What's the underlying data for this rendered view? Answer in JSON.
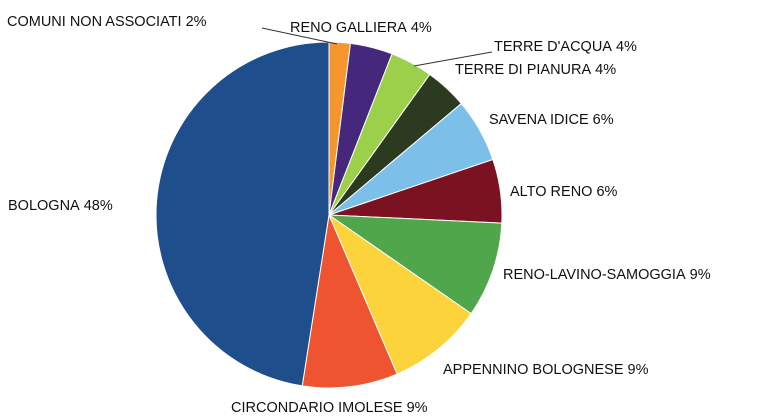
{
  "chart_data": {
    "type": "pie",
    "categories": [
      "COMUNI NON ASSOCIATI",
      "RENO GALLIERA",
      "TERRE D'ACQUA",
      "TERRE DI PIANURA",
      "SAVENA IDICE",
      "ALTO RENO",
      "RENO-LAVINO-SAMOGGIA",
      "APPENNINO BOLOGNESE",
      "CIRCONDARIO IMOLESE",
      "BOLOGNA"
    ],
    "values": [
      2,
      4,
      4,
      4,
      6,
      6,
      9,
      9,
      9,
      48
    ],
    "value_labels": [
      "2%",
      "4%",
      "4%",
      "4%",
      "6%",
      "6%",
      "9%",
      "9%",
      "9%",
      "48%"
    ],
    "colors": [
      "#f7962e",
      "#45287c",
      "#9dd04a",
      "#2c3b1f",
      "#7cc0ea",
      "#7b1222",
      "#4fa64b",
      "#fdd33b",
      "#ef5431",
      "#1f4e8d"
    ]
  }
}
